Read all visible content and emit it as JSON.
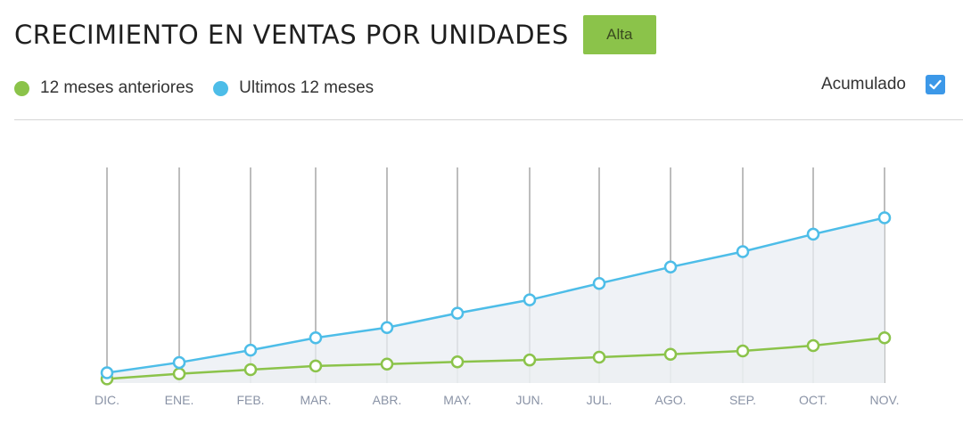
{
  "header": {
    "title": "CRECIMIENTO EN VENTAS POR UNIDADES",
    "badge_label": "Alta"
  },
  "legend": {
    "items": [
      {
        "label": "12 meses anteriores",
        "color": "#8bc34a"
      },
      {
        "label": "Ultimos 12 meses",
        "color": "#4dbde8"
      }
    ]
  },
  "controls": {
    "accumulated_label": "Acumulado",
    "accumulated_checked": true
  },
  "colors": {
    "badge": "#8bc34a",
    "checkbox": "#3c98e8",
    "grid": "#bdbdbd",
    "fill": "#e9eef3"
  },
  "chart_data": {
    "type": "line",
    "categories": [
      "DIC.",
      "ENE.",
      "FEB.",
      "MAR.",
      "ABR.",
      "MAY.",
      "JUN.",
      "JUL.",
      "AGO.",
      "SEP.",
      "OCT.",
      "NOV."
    ],
    "series": [
      {
        "name": "12 meses anteriores",
        "color": "#8bc34a",
        "values": [
          2,
          4.5,
          6.5,
          8.3,
          9.2,
          10.3,
          11.2,
          12.6,
          14,
          15.6,
          18.2,
          22
        ]
      },
      {
        "name": "Ultimos 12 meses",
        "color": "#4dbde8",
        "values": [
          5,
          10,
          16,
          22,
          27,
          34,
          40.5,
          48.5,
          56.5,
          64,
          72.5,
          80.5
        ]
      }
    ],
    "ylim": [
      0,
      105
    ],
    "grid": "vertical",
    "area_fill": true,
    "legend_position": "top-left"
  }
}
